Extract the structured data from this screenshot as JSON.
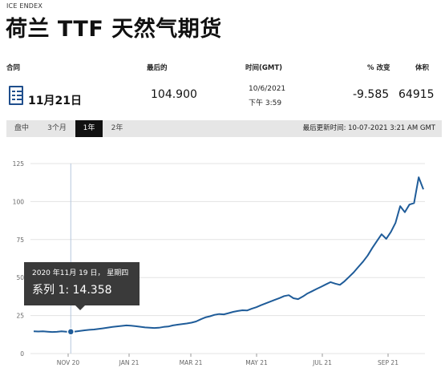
{
  "header": {
    "exchange": "ICE ENDEX",
    "title": "荷兰 TTF 天然气期货"
  },
  "columns": {
    "contract": "合同",
    "last": "最后的",
    "time": "时间(GMT)",
    "change": "% 改变",
    "volume": "体积"
  },
  "quote": {
    "contract": "11月21日",
    "last": "104.900",
    "date": "10/6/2021",
    "time": "下午 3:59",
    "change": "-9.585",
    "volume": "64915"
  },
  "tabs": [
    {
      "label": "盘中",
      "active": false
    },
    {
      "label": "3个月",
      "active": false
    },
    {
      "label": "1年",
      "active": true
    },
    {
      "label": "2年",
      "active": false
    }
  ],
  "last_updated": "最后更新时间: 10-07-2021 3:21 AM GMT",
  "tooltip": {
    "date": "2020 年11月 19 日， 星期四",
    "series": "系列 1:  14.358"
  },
  "colors": {
    "line": "#1f5c99",
    "grid": "#e3e3e3",
    "tab_active": "#111111",
    "tabbar": "#e6e6e6"
  },
  "chart_data": {
    "type": "line",
    "ylim": [
      0,
      125
    ],
    "yticks": [
      0,
      25,
      50,
      75,
      100,
      125
    ],
    "xtick_labels": [
      "NOV 20",
      "JAN 21",
      "MAR 21",
      "MAY 21",
      "JUL 21",
      "SEP 21"
    ],
    "series": [
      {
        "values": [
          14.6,
          14.5,
          14.6,
          14.4,
          14.2,
          14.3,
          14.6,
          14.4,
          14.358,
          14.5,
          14.9,
          15.3,
          15.6,
          15.8,
          16.2,
          16.6,
          17.1,
          17.5,
          17.9,
          18.2,
          18.5,
          18.3,
          18.0,
          17.6,
          17.2,
          17.0,
          16.8,
          17.0,
          17.5,
          17.8,
          18.5,
          19.0,
          19.4,
          19.8,
          20.3,
          21.1,
          22.5,
          23.8,
          24.5,
          25.5,
          26.0,
          25.8,
          26.6,
          27.4,
          28.0,
          28.5,
          28.3,
          29.5,
          30.5,
          31.8,
          33.0,
          34.2,
          35.4,
          36.5,
          37.8,
          38.4,
          36.4,
          35.8,
          37.5,
          39.5,
          41.0,
          42.5,
          44.0,
          45.5,
          47.0,
          46.0,
          45.2,
          47.5,
          50.5,
          53.5,
          57.0,
          60.5,
          64.5,
          69.5,
          74.0,
          78.5,
          75.5,
          80.0,
          86.0,
          97.0,
          93.0,
          98.0,
          99.0,
          116.0,
          108.0
        ]
      }
    ]
  }
}
